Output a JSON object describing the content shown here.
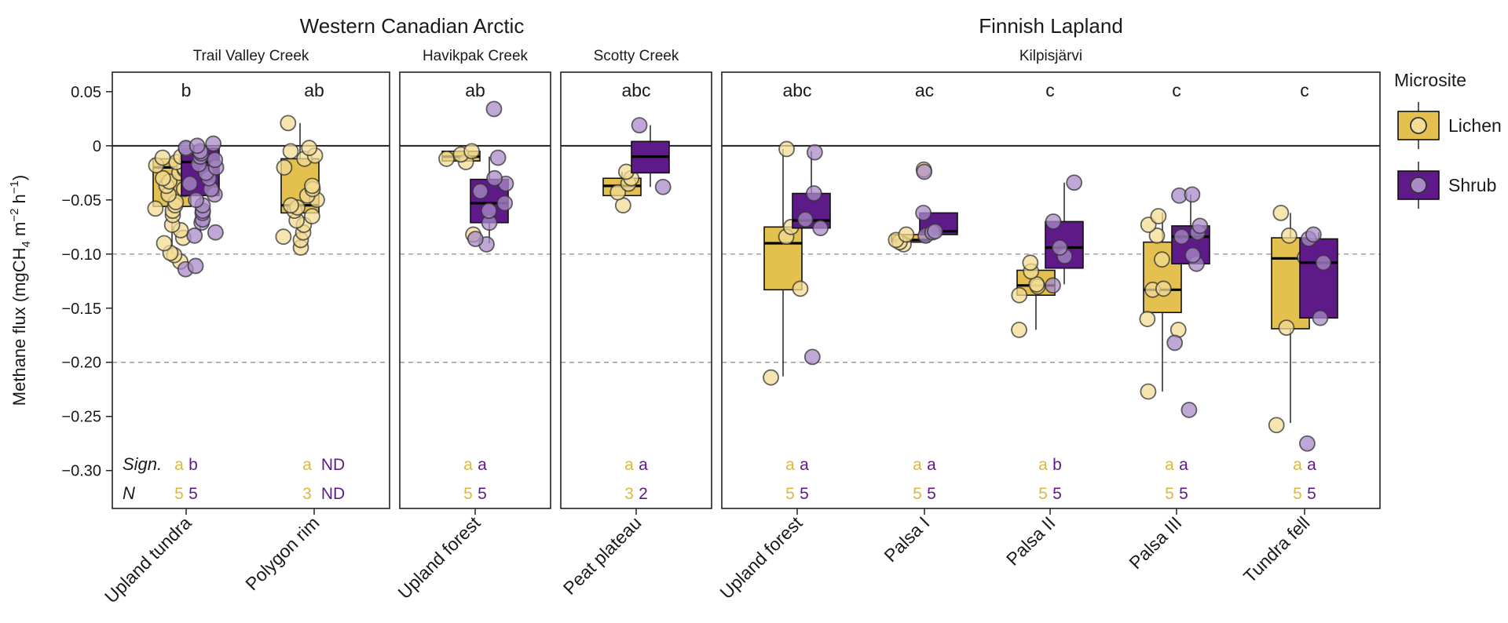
{
  "chart_data": {
    "type": "boxplot",
    "ylabel_prefix": "Methane flux (mgCH",
    "ylabel_sub4": "4",
    "ylabel_mid": " m",
    "ylabel_sup1": "−2",
    "ylabel_mid2": " h",
    "ylabel_sup2": "−1",
    "ylabel_suffix": ")",
    "ylim": [
      -0.335,
      0.068
    ],
    "yticks": [
      0.05,
      0,
      -0.05,
      -0.1,
      -0.15,
      -0.2,
      -0.25,
      -0.3
    ],
    "ytick_labels": [
      "0.05",
      "0",
      "−0.05",
      "−0.10",
      "−0.15",
      "−0.20",
      "−0.25",
      "−0.30"
    ],
    "reference_lines": [
      -0.1,
      -0.2
    ],
    "colors": {
      "lichen_box": "#E4C04E",
      "lichen_point": "#F3DC93",
      "shrub_box": "#5F1A8A",
      "shrub_point": "#A98BC7",
      "lichen_text": "#D9B845",
      "shrub_text": "#5F1A8A"
    },
    "legend": {
      "title": "Microsite",
      "items": [
        {
          "key": "lichen",
          "label": "Lichen"
        },
        {
          "key": "shrub",
          "label": "Shrub"
        }
      ]
    },
    "row_labels": {
      "sign": "Sign.",
      "n": "N"
    },
    "regions": [
      {
        "name": "Western Canadian Arctic",
        "panels": [
          0,
          1,
          2
        ]
      },
      {
        "name": "Finnish Lapland",
        "panels": [
          3
        ]
      }
    ],
    "panels": [
      {
        "site": "Trail Valley Creek",
        "categories": [
          {
            "label": "Upland tundra",
            "letter": "b",
            "lichen": {
              "q1": -0.056,
              "median": -0.02,
              "q3": -0.012,
              "wlo": -0.1,
              "whi": -0.01,
              "points": [
                -0.107,
                -0.101,
                -0.099,
                -0.09,
                -0.085,
                -0.078,
                -0.073,
                -0.064,
                -0.06,
                -0.058,
                -0.055,
                -0.052,
                -0.045,
                -0.04,
                -0.037,
                -0.033,
                -0.03,
                -0.028,
                -0.025,
                -0.022,
                -0.02,
                -0.018,
                -0.015,
                -0.013,
                -0.011,
                -0.01
              ]
            },
            "shrub": {
              "q1": -0.046,
              "median": -0.015,
              "q3": -0.002,
              "wlo": -0.08,
              "whi": 0.002,
              "points": [
                -0.114,
                -0.111,
                -0.083,
                -0.08,
                -0.071,
                -0.068,
                -0.062,
                -0.06,
                -0.055,
                -0.05,
                -0.045,
                -0.04,
                -0.035,
                -0.03,
                -0.025,
                -0.02,
                -0.017,
                -0.013,
                -0.01,
                -0.007,
                -0.005,
                -0.003,
                -0.002,
                0.0,
                0.002
              ]
            },
            "sign_lichen": "a",
            "sign_shrub": "b",
            "n_lichen": "5",
            "n_shrub": "5"
          },
          {
            "label": "Polygon rim",
            "letter": "ab",
            "lichen": {
              "q1": -0.062,
              "median": -0.055,
              "q3": -0.012,
              "wlo": -0.095,
              "whi": 0.021,
              "points": [
                -0.094,
                -0.087,
                -0.084,
                -0.08,
                -0.073,
                -0.069,
                -0.065,
                -0.06,
                -0.057,
                -0.055,
                -0.05,
                -0.046,
                -0.04,
                -0.037,
                -0.02,
                -0.012,
                -0.009,
                -0.005,
                -0.002,
                0.021
              ]
            },
            "shrub": null,
            "sign_lichen": "a",
            "sign_shrub": "ND",
            "n_lichen": "3",
            "n_shrub": "ND"
          }
        ]
      },
      {
        "site": "Havikpak Creek",
        "categories": [
          {
            "label": "Upland forest",
            "letter": "ab",
            "lichen": {
              "q1": -0.014,
              "median": -0.01,
              "q3": -0.005,
              "wlo": -0.014,
              "whi": -0.005,
              "points": [
                -0.082,
                -0.015,
                -0.012,
                -0.008,
                -0.005
              ]
            },
            "shrub": {
              "q1": -0.071,
              "median": -0.053,
              "q3": -0.031,
              "wlo": -0.09,
              "whi": -0.01,
              "points": [
                -0.091,
                -0.086,
                -0.071,
                -0.06,
                -0.053,
                -0.042,
                -0.035,
                -0.03,
                -0.011,
                0.034
              ]
            },
            "sign_lichen": "a",
            "sign_shrub": "a",
            "n_lichen": "5",
            "n_shrub": "5"
          }
        ]
      },
      {
        "site": "Scotty Creek",
        "categories": [
          {
            "label": "Peat plateau",
            "letter": "abc",
            "lichen": {
              "q1": -0.046,
              "median": -0.037,
              "q3": -0.03,
              "wlo": -0.046,
              "whi": -0.024,
              "points": [
                -0.055,
                -0.043,
                -0.035,
                -0.03,
                -0.024
              ]
            },
            "shrub": {
              "q1": -0.025,
              "median": -0.01,
              "q3": 0.004,
              "wlo": -0.038,
              "whi": 0.019,
              "points": [
                -0.038,
                0.019
              ]
            },
            "sign_lichen": "a",
            "sign_shrub": "a",
            "n_lichen": "3",
            "n_shrub": "2"
          }
        ]
      },
      {
        "site": "Kilpisjärvi",
        "categories": [
          {
            "label": "Upland forest",
            "letter": "abc",
            "lichen": {
              "q1": -0.133,
              "median": -0.09,
              "q3": -0.075,
              "wlo": -0.213,
              "whi": -0.003,
              "points": [
                -0.214,
                -0.132,
                -0.084,
                -0.075,
                -0.003
              ]
            },
            "shrub": {
              "q1": -0.076,
              "median": -0.069,
              "q3": -0.044,
              "wlo": -0.076,
              "whi": -0.005,
              "points": [
                -0.195,
                -0.076,
                -0.068,
                -0.044,
                -0.006
              ]
            },
            "sign_lichen": "a",
            "sign_shrub": "a",
            "n_lichen": "5",
            "n_shrub": "5"
          },
          {
            "label": "Palsa I",
            "letter": "ac",
            "lichen": {
              "q1": -0.089,
              "median": -0.087,
              "q3": -0.082,
              "wlo": -0.089,
              "whi": -0.082,
              "points": [
                -0.091,
                -0.089,
                -0.087,
                -0.082,
                -0.022
              ]
            },
            "shrub": {
              "q1": -0.082,
              "median": -0.079,
              "q3": -0.062,
              "wlo": -0.082,
              "whi": -0.062,
              "points": [
                -0.083,
                -0.08,
                -0.079,
                -0.062,
                -0.024
              ]
            },
            "sign_lichen": "a",
            "sign_shrub": "a",
            "n_lichen": "5",
            "n_shrub": "5"
          },
          {
            "label": "Palsa II",
            "letter": "c",
            "lichen": {
              "q1": -0.138,
              "median": -0.129,
              "q3": -0.115,
              "wlo": -0.17,
              "whi": -0.109,
              "points": [
                -0.17,
                -0.138,
                -0.13,
                -0.128,
                -0.116,
                -0.108
              ]
            },
            "shrub": {
              "q1": -0.113,
              "median": -0.094,
              "q3": -0.07,
              "wlo": -0.128,
              "whi": -0.034,
              "points": [
                -0.129,
                -0.102,
                -0.094,
                -0.07,
                -0.034
              ]
            },
            "sign_lichen": "a",
            "sign_shrub": "b",
            "n_lichen": "5",
            "n_shrub": "5"
          },
          {
            "label": "Palsa III",
            "letter": "c",
            "lichen": {
              "q1": -0.154,
              "median": -0.133,
              "q3": -0.089,
              "wlo": -0.227,
              "whi": -0.062,
              "points": [
                -0.227,
                -0.17,
                -0.16,
                -0.133,
                -0.132,
                -0.105,
                -0.083,
                -0.073,
                -0.065
              ]
            },
            "shrub": {
              "q1": -0.109,
              "median": -0.084,
              "q3": -0.074,
              "wlo": -0.109,
              "whi": -0.045,
              "points": [
                -0.244,
                -0.182,
                -0.109,
                -0.101,
                -0.084,
                -0.08,
                -0.074,
                -0.046,
                -0.045
              ]
            },
            "sign_lichen": "a",
            "sign_shrub": "a",
            "n_lichen": "5",
            "n_shrub": "5"
          },
          {
            "label": "Tundra fell",
            "letter": "c",
            "lichen": {
              "q1": -0.169,
              "median": -0.104,
              "q3": -0.085,
              "wlo": -0.256,
              "whi": -0.062,
              "points": [
                -0.258,
                -0.168,
                -0.103,
                -0.083,
                -0.062
              ]
            },
            "shrub": {
              "q1": -0.159,
              "median": -0.108,
              "q3": -0.086,
              "wlo": -0.159,
              "whi": -0.08,
              "points": [
                -0.275,
                -0.159,
                -0.108,
                -0.086,
                -0.082
              ]
            },
            "sign_lichen": "a",
            "sign_shrub": "a",
            "n_lichen": "5",
            "n_shrub": "5"
          }
        ]
      }
    ]
  }
}
